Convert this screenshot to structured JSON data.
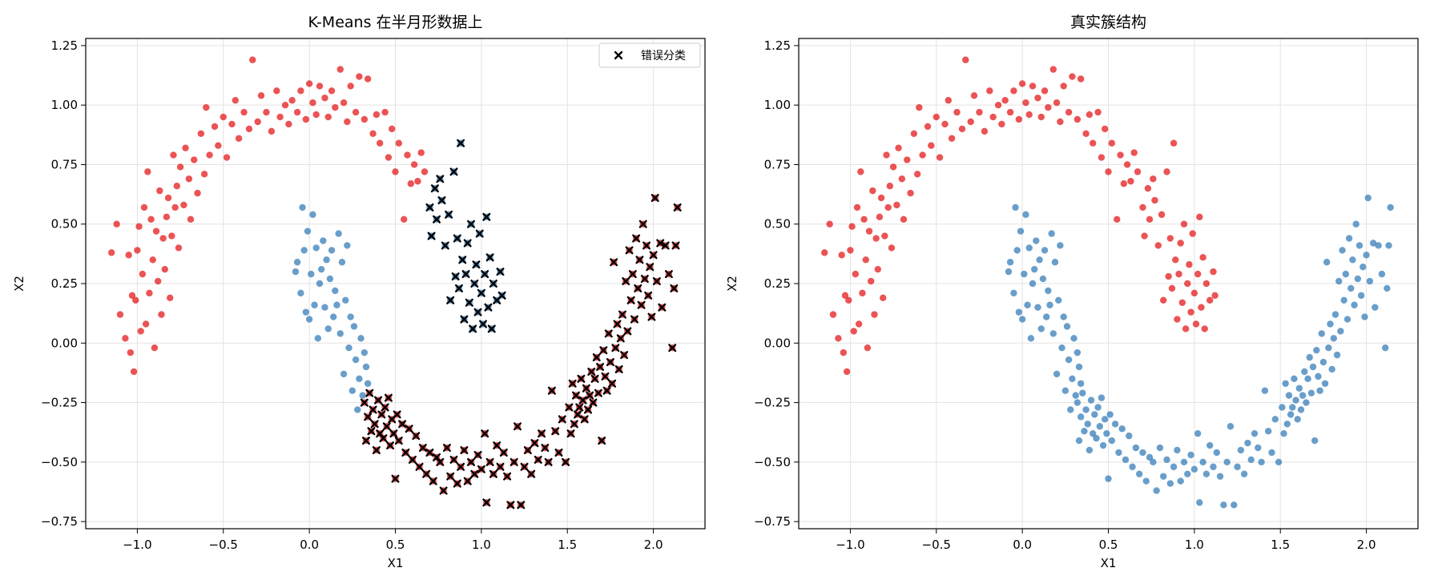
{
  "figure": {
    "background": "#ffffff"
  },
  "colors": {
    "cluster_0": "#e41a1c",
    "cluster_1": "#377eb8",
    "misclassified_marker": "#000000",
    "grid": "#e3e3e3"
  },
  "chart_data": [
    {
      "type": "scatter",
      "title": "K-Means 在半月形数据上",
      "xlabel": "X1",
      "ylabel": "X2",
      "xlim": [
        -1.3,
        2.3
      ],
      "ylim": [
        -0.78,
        1.28
      ],
      "xticks": [
        -1.0,
        -0.5,
        0.0,
        0.5,
        1.0,
        1.5,
        2.0
      ],
      "xtick_labels": [
        "−1.0",
        "−0.5",
        "0.0",
        "0.5",
        "1.0",
        "1.5",
        "2.0"
      ],
      "yticks": [
        -0.75,
        -0.5,
        -0.25,
        0.0,
        0.25,
        0.5,
        0.75,
        1.0,
        1.25
      ],
      "ytick_labels": [
        "−0.75",
        "−0.50",
        "−0.25",
        "0.00",
        "0.25",
        "0.50",
        "0.75",
        "1.00",
        "1.25"
      ],
      "grid": true,
      "legend": {
        "placement": "top-right",
        "entries": [
          {
            "label": "错误分类",
            "marker": "x",
            "color": "#000000"
          }
        ]
      },
      "point_color_by": "kmeans_label",
      "misclassified_overlay": true,
      "points_source": "shared_points"
    },
    {
      "type": "scatter",
      "title": "真实簇结构",
      "xlabel": "X1",
      "ylabel": "X2",
      "xlim": [
        -1.3,
        2.3
      ],
      "ylim": [
        -0.78,
        1.28
      ],
      "xticks": [
        -1.0,
        -0.5,
        0.0,
        0.5,
        1.0,
        1.5,
        2.0
      ],
      "xtick_labels": [
        "−1.0",
        "−0.5",
        "0.0",
        "0.5",
        "1.0",
        "1.5",
        "2.0"
      ],
      "yticks": [
        -0.75,
        -0.5,
        -0.25,
        0.0,
        0.25,
        0.5,
        0.75,
        1.0,
        1.25
      ],
      "ytick_labels": [
        "−0.75",
        "−0.50",
        "−0.25",
        "0.00",
        "0.25",
        "0.50",
        "0.75",
        "1.00",
        "1.25"
      ],
      "grid": true,
      "point_color_by": "true_label",
      "misclassified_overlay": false,
      "points_source": "shared_points"
    }
  ],
  "shared_points": [
    [
      -1.15,
      0.38,
      0,
      0
    ],
    [
      -1.12,
      0.5,
      0,
      0
    ],
    [
      -1.1,
      0.12,
      0,
      0
    ],
    [
      -1.07,
      0.02,
      0,
      0
    ],
    [
      -1.05,
      0.37,
      0,
      0
    ],
    [
      -1.04,
      -0.04,
      0,
      0
    ],
    [
      -1.03,
      0.2,
      0,
      0
    ],
    [
      -1.02,
      -0.12,
      0,
      0
    ],
    [
      -1.01,
      0.18,
      0,
      0
    ],
    [
      -1.0,
      0.39,
      0,
      0
    ],
    [
      -0.99,
      0.49,
      0,
      0
    ],
    [
      -0.98,
      0.05,
      0,
      0
    ],
    [
      -0.97,
      0.29,
      0,
      0
    ],
    [
      -0.96,
      0.57,
      0,
      0
    ],
    [
      -0.95,
      0.08,
      0,
      0
    ],
    [
      -0.94,
      0.72,
      0,
      0
    ],
    [
      -0.93,
      0.21,
      0,
      0
    ],
    [
      -0.92,
      0.52,
      0,
      0
    ],
    [
      -0.91,
      0.35,
      0,
      0
    ],
    [
      -0.9,
      -0.02,
      0,
      0
    ],
    [
      -0.89,
      0.47,
      0,
      0
    ],
    [
      -0.88,
      0.26,
      0,
      0
    ],
    [
      -0.87,
      0.64,
      0,
      0
    ],
    [
      -0.86,
      0.12,
      0,
      0
    ],
    [
      -0.85,
      0.44,
      0,
      0
    ],
    [
      -0.84,
      0.31,
      0,
      0
    ],
    [
      -0.83,
      0.53,
      0,
      0
    ],
    [
      -0.82,
      0.61,
      0,
      0
    ],
    [
      -0.81,
      0.19,
      0,
      0
    ],
    [
      -0.8,
      0.45,
      0,
      0
    ],
    [
      -0.79,
      0.79,
      0,
      0
    ],
    [
      -0.78,
      0.57,
      0,
      0
    ],
    [
      -0.77,
      0.66,
      0,
      0
    ],
    [
      -0.76,
      0.4,
      0,
      0
    ],
    [
      -0.75,
      0.74,
      0,
      0
    ],
    [
      -0.73,
      0.58,
      0,
      0
    ],
    [
      -0.72,
      0.82,
      0,
      0
    ],
    [
      -0.7,
      0.69,
      0,
      0
    ],
    [
      -0.69,
      0.52,
      0,
      0
    ],
    [
      -0.67,
      0.77,
      0,
      0
    ],
    [
      -0.65,
      0.63,
      0,
      0
    ],
    [
      -0.63,
      0.88,
      0,
      0
    ],
    [
      -0.61,
      0.71,
      0,
      0
    ],
    [
      -0.6,
      0.99,
      0,
      0
    ],
    [
      -0.58,
      0.79,
      0,
      0
    ],
    [
      -0.55,
      0.91,
      0,
      0
    ],
    [
      -0.53,
      0.83,
      0,
      0
    ],
    [
      -0.5,
      0.95,
      0,
      0
    ],
    [
      -0.48,
      0.78,
      0,
      0
    ],
    [
      -0.45,
      0.92,
      0,
      0
    ],
    [
      -0.43,
      1.02,
      0,
      0
    ],
    [
      -0.41,
      0.86,
      0,
      0
    ],
    [
      -0.38,
      0.97,
      0,
      0
    ],
    [
      -0.35,
      0.9,
      0,
      0
    ],
    [
      -0.33,
      1.19,
      0,
      0
    ],
    [
      -0.3,
      0.93,
      0,
      0
    ],
    [
      -0.28,
      1.04,
      0,
      0
    ],
    [
      -0.25,
      0.97,
      0,
      0
    ],
    [
      -0.22,
      0.89,
      0,
      0
    ],
    [
      -0.19,
      1.06,
      0,
      0
    ],
    [
      -0.17,
      0.95,
      0,
      0
    ],
    [
      -0.14,
      1.0,
      0,
      0
    ],
    [
      -0.12,
      0.92,
      0,
      0
    ],
    [
      -0.1,
      1.02,
      0,
      0
    ],
    [
      -0.07,
      0.97,
      0,
      0
    ],
    [
      -0.05,
      1.06,
      0,
      0
    ],
    [
      -0.02,
      0.94,
      0,
      0
    ],
    [
      0.0,
      1.09,
      0,
      0
    ],
    [
      0.02,
      1.01,
      0,
      0
    ],
    [
      0.04,
      0.96,
      0,
      0
    ],
    [
      0.06,
      1.08,
      0,
      0
    ],
    [
      0.09,
      1.03,
      0,
      0
    ],
    [
      0.11,
      0.95,
      0,
      0
    ],
    [
      0.13,
      1.06,
      0,
      0
    ],
    [
      0.15,
      0.99,
      0,
      0
    ],
    [
      0.18,
      1.15,
      0,
      0
    ],
    [
      0.2,
      1.01,
      0,
      0
    ],
    [
      0.22,
      0.93,
      0,
      0
    ],
    [
      0.24,
      1.08,
      0,
      0
    ],
    [
      0.27,
      0.97,
      0,
      0
    ],
    [
      0.29,
      1.12,
      0,
      0
    ],
    [
      0.32,
      0.94,
      0,
      0
    ],
    [
      0.34,
      1.11,
      0,
      0
    ],
    [
      0.37,
      0.88,
      0,
      0
    ],
    [
      0.39,
      0.96,
      0,
      0
    ],
    [
      0.41,
      0.84,
      0,
      0
    ],
    [
      0.44,
      0.97,
      0,
      0
    ],
    [
      0.46,
      0.78,
      0,
      0
    ],
    [
      0.48,
      0.9,
      0,
      0
    ],
    [
      0.5,
      0.72,
      0,
      0
    ],
    [
      0.52,
      0.84,
      0,
      0
    ],
    [
      0.55,
      0.52,
      0,
      0
    ],
    [
      0.57,
      0.79,
      0,
      0
    ],
    [
      0.59,
      0.67,
      0,
      0
    ],
    [
      0.61,
      0.75,
      0,
      0
    ],
    [
      0.63,
      0.68,
      0,
      0
    ],
    [
      0.65,
      0.8,
      0,
      0
    ],
    [
      0.67,
      0.72,
      0,
      0
    ],
    [
      0.7,
      0.57,
      1,
      0
    ],
    [
      0.71,
      0.45,
      1,
      0
    ],
    [
      0.73,
      0.65,
      1,
      0
    ],
    [
      0.74,
      0.52,
      1,
      0
    ],
    [
      0.76,
      0.69,
      1,
      0
    ],
    [
      0.77,
      0.6,
      1,
      0
    ],
    [
      0.79,
      0.41,
      1,
      0
    ],
    [
      0.81,
      0.54,
      1,
      0
    ],
    [
      0.82,
      0.18,
      1,
      0
    ],
    [
      0.84,
      0.72,
      1,
      0
    ],
    [
      0.85,
      0.28,
      1,
      0
    ],
    [
      0.86,
      0.44,
      1,
      0
    ],
    [
      0.87,
      0.23,
      1,
      0
    ],
    [
      0.88,
      0.84,
      1,
      0
    ],
    [
      0.89,
      0.35,
      1,
      0
    ],
    [
      0.9,
      0.1,
      1,
      0
    ],
    [
      0.91,
      0.29,
      1,
      0
    ],
    [
      0.92,
      0.42,
      1,
      0
    ],
    [
      0.93,
      0.17,
      1,
      0
    ],
    [
      0.94,
      0.5,
      1,
      0
    ],
    [
      0.95,
      0.06,
      1,
      0
    ],
    [
      0.96,
      0.25,
      1,
      0
    ],
    [
      0.97,
      0.33,
      1,
      0
    ],
    [
      0.98,
      0.13,
      1,
      0
    ],
    [
      0.99,
      0.46,
      1,
      0
    ],
    [
      1.0,
      0.21,
      1,
      0
    ],
    [
      1.01,
      0.08,
      1,
      0
    ],
    [
      1.02,
      0.29,
      1,
      0
    ],
    [
      1.03,
      0.53,
      1,
      0
    ],
    [
      1.04,
      0.15,
      1,
      0
    ],
    [
      1.05,
      0.36,
      1,
      0
    ],
    [
      1.06,
      0.06,
      1,
      0
    ],
    [
      1.07,
      0.25,
      1,
      0
    ],
    [
      1.09,
      0.18,
      1,
      0
    ],
    [
      1.11,
      0.3,
      1,
      0
    ],
    [
      1.12,
      0.2,
      1,
      0
    ],
    [
      -0.08,
      0.3,
      1,
      1
    ],
    [
      -0.07,
      0.34,
      1,
      1
    ],
    [
      -0.05,
      0.21,
      1,
      1
    ],
    [
      -0.04,
      0.57,
      1,
      1
    ],
    [
      -0.03,
      0.39,
      1,
      1
    ],
    [
      -0.02,
      0.13,
      1,
      1
    ],
    [
      -0.01,
      0.47,
      1,
      1
    ],
    [
      0.0,
      0.1,
      1,
      1
    ],
    [
      0.01,
      0.29,
      1,
      1
    ],
    [
      0.02,
      0.54,
      1,
      1
    ],
    [
      0.03,
      0.16,
      1,
      1
    ],
    [
      0.04,
      0.4,
      1,
      1
    ],
    [
      0.05,
      0.02,
      1,
      1
    ],
    [
      0.06,
      0.25,
      1,
      1
    ],
    [
      0.07,
      0.31,
      1,
      1
    ],
    [
      0.08,
      0.43,
      1,
      1
    ],
    [
      0.09,
      0.15,
      1,
      1
    ],
    [
      0.1,
      0.35,
      1,
      1
    ],
    [
      0.11,
      0.06,
      1,
      1
    ],
    [
      0.12,
      0.27,
      1,
      1
    ],
    [
      0.13,
      0.39,
      1,
      1
    ],
    [
      0.14,
      0.11,
      1,
      1
    ],
    [
      0.15,
      0.22,
      1,
      1
    ],
    [
      0.16,
      0.16,
      1,
      1
    ],
    [
      0.17,
      0.46,
      1,
      1
    ],
    [
      0.18,
      0.04,
      1,
      1
    ],
    [
      0.19,
      0.34,
      1,
      1
    ],
    [
      0.2,
      -0.13,
      1,
      1
    ],
    [
      0.21,
      0.18,
      1,
      1
    ],
    [
      0.22,
      0.41,
      1,
      1
    ],
    [
      0.23,
      -0.02,
      1,
      1
    ],
    [
      0.24,
      0.11,
      1,
      1
    ],
    [
      0.25,
      -0.2,
      1,
      1
    ],
    [
      0.26,
      0.07,
      1,
      1
    ],
    [
      0.27,
      -0.07,
      1,
      1
    ],
    [
      0.28,
      -0.28,
      1,
      1
    ],
    [
      0.29,
      -0.15,
      1,
      1
    ],
    [
      0.3,
      0.02,
      1,
      1
    ],
    [
      0.31,
      -0.22,
      1,
      1
    ],
    [
      0.32,
      -0.04,
      1,
      1
    ],
    [
      0.33,
      -0.1,
      1,
      1
    ],
    [
      0.34,
      -0.17,
      1,
      1
    ],
    [
      0.32,
      -0.25,
      0,
      1
    ],
    [
      0.33,
      -0.41,
      0,
      1
    ],
    [
      0.34,
      -0.31,
      0,
      1
    ],
    [
      0.35,
      -0.21,
      0,
      1
    ],
    [
      0.36,
      -0.37,
      0,
      1
    ],
    [
      0.37,
      -0.28,
      0,
      1
    ],
    [
      0.38,
      -0.34,
      0,
      1
    ],
    [
      0.39,
      -0.45,
      0,
      1
    ],
    [
      0.4,
      -0.24,
      0,
      1
    ],
    [
      0.41,
      -0.38,
      0,
      1
    ],
    [
      0.42,
      -0.3,
      0,
      1
    ],
    [
      0.43,
      -0.4,
      0,
      1
    ],
    [
      0.44,
      -0.27,
      0,
      1
    ],
    [
      0.45,
      -0.35,
      0,
      1
    ],
    [
      0.46,
      -0.23,
      0,
      1
    ],
    [
      0.47,
      -0.43,
      0,
      1
    ],
    [
      0.48,
      -0.32,
      0,
      1
    ],
    [
      0.49,
      -0.38,
      0,
      1
    ],
    [
      0.5,
      -0.57,
      0,
      1
    ],
    [
      0.51,
      -0.3,
      0,
      1
    ],
    [
      0.52,
      -0.41,
      0,
      1
    ],
    [
      0.54,
      -0.34,
      0,
      1
    ],
    [
      0.56,
      -0.46,
      0,
      1
    ],
    [
      0.58,
      -0.36,
      0,
      1
    ],
    [
      0.6,
      -0.49,
      0,
      1
    ],
    [
      0.62,
      -0.39,
      0,
      1
    ],
    [
      0.64,
      -0.52,
      0,
      1
    ],
    [
      0.66,
      -0.44,
      0,
      1
    ],
    [
      0.68,
      -0.55,
      0,
      1
    ],
    [
      0.7,
      -0.46,
      0,
      1
    ],
    [
      0.72,
      -0.58,
      0,
      1
    ],
    [
      0.74,
      -0.48,
      0,
      1
    ],
    [
      0.76,
      -0.5,
      0,
      1
    ],
    [
      0.78,
      -0.62,
      0,
      1
    ],
    [
      0.8,
      -0.44,
      0,
      1
    ],
    [
      0.82,
      -0.56,
      0,
      1
    ],
    [
      0.84,
      -0.49,
      0,
      1
    ],
    [
      0.86,
      -0.59,
      0,
      1
    ],
    [
      0.88,
      -0.52,
      0,
      1
    ],
    [
      0.9,
      -0.45,
      0,
      1
    ],
    [
      0.92,
      -0.58,
      0,
      1
    ],
    [
      0.94,
      -0.5,
      0,
      1
    ],
    [
      0.96,
      -0.55,
      0,
      1
    ],
    [
      0.98,
      -0.47,
      0,
      1
    ],
    [
      1.0,
      -0.53,
      0,
      1
    ],
    [
      1.02,
      -0.38,
      0,
      1
    ],
    [
      1.03,
      -0.67,
      0,
      1
    ],
    [
      1.05,
      -0.5,
      0,
      1
    ],
    [
      1.07,
      -0.55,
      0,
      1
    ],
    [
      1.09,
      -0.43,
      0,
      1
    ],
    [
      1.11,
      -0.52,
      0,
      1
    ],
    [
      1.13,
      -0.46,
      0,
      1
    ],
    [
      1.15,
      -0.56,
      0,
      1
    ],
    [
      1.17,
      -0.68,
      0,
      1
    ],
    [
      1.19,
      -0.5,
      0,
      1
    ],
    [
      1.21,
      -0.35,
      0,
      1
    ],
    [
      1.23,
      -0.68,
      0,
      1
    ],
    [
      1.25,
      -0.52,
      0,
      1
    ],
    [
      1.27,
      -0.45,
      0,
      1
    ],
    [
      1.29,
      -0.55,
      0,
      1
    ],
    [
      1.31,
      -0.42,
      0,
      1
    ],
    [
      1.33,
      -0.49,
      0,
      1
    ],
    [
      1.35,
      -0.38,
      0,
      1
    ],
    [
      1.37,
      -0.44,
      0,
      1
    ],
    [
      1.39,
      -0.5,
      0,
      1
    ],
    [
      1.41,
      -0.2,
      0,
      1
    ],
    [
      1.43,
      -0.37,
      0,
      1
    ],
    [
      1.45,
      -0.46,
      0,
      1
    ],
    [
      1.47,
      -0.32,
      0,
      1
    ],
    [
      1.49,
      -0.5,
      0,
      1
    ],
    [
      1.51,
      -0.27,
      0,
      1
    ],
    [
      1.52,
      -0.38,
      0,
      1
    ],
    [
      1.53,
      -0.17,
      0,
      1
    ],
    [
      1.54,
      -0.34,
      0,
      1
    ],
    [
      1.55,
      -0.22,
      0,
      1
    ],
    [
      1.56,
      -0.3,
      0,
      1
    ],
    [
      1.57,
      -0.27,
      0,
      1
    ],
    [
      1.58,
      -0.15,
      0,
      1
    ],
    [
      1.59,
      -0.24,
      0,
      1
    ],
    [
      1.6,
      -0.32,
      0,
      1
    ],
    [
      1.61,
      -0.19,
      0,
      1
    ],
    [
      1.62,
      -0.28,
      0,
      1
    ],
    [
      1.63,
      -0.22,
      0,
      1
    ],
    [
      1.64,
      -0.12,
      0,
      1
    ],
    [
      1.65,
      -0.25,
      0,
      1
    ],
    [
      1.66,
      -0.15,
      0,
      1
    ],
    [
      1.67,
      -0.06,
      0,
      1
    ],
    [
      1.68,
      -0.21,
      0,
      1
    ],
    [
      1.69,
      -0.1,
      0,
      1
    ],
    [
      1.7,
      -0.41,
      0,
      1
    ],
    [
      1.71,
      -0.03,
      0,
      1
    ],
    [
      1.72,
      -0.14,
      0,
      1
    ],
    [
      1.73,
      -0.2,
      0,
      1
    ],
    [
      1.74,
      0.04,
      0,
      1
    ],
    [
      1.75,
      -0.08,
      0,
      1
    ],
    [
      1.76,
      -0.17,
      0,
      1
    ],
    [
      1.77,
      0.34,
      0,
      1
    ],
    [
      1.78,
      -0.02,
      0,
      1
    ],
    [
      1.79,
      0.08,
      0,
      1
    ],
    [
      1.8,
      -0.11,
      0,
      1
    ],
    [
      1.81,
      0.02,
      0,
      1
    ],
    [
      1.82,
      0.12,
      0,
      1
    ],
    [
      1.83,
      -0.05,
      0,
      1
    ],
    [
      1.84,
      0.26,
      0,
      1
    ],
    [
      1.85,
      0.05,
      0,
      1
    ],
    [
      1.86,
      0.39,
      0,
      1
    ],
    [
      1.87,
      0.18,
      0,
      1
    ],
    [
      1.88,
      0.29,
      0,
      1
    ],
    [
      1.89,
      0.1,
      0,
      1
    ],
    [
      1.9,
      0.44,
      0,
      1
    ],
    [
      1.91,
      0.23,
      0,
      1
    ],
    [
      1.92,
      0.35,
      0,
      1
    ],
    [
      1.93,
      0.16,
      0,
      1
    ],
    [
      1.94,
      0.5,
      0,
      1
    ],
    [
      1.95,
      0.27,
      0,
      1
    ],
    [
      1.96,
      0.41,
      0,
      1
    ],
    [
      1.97,
      0.2,
      0,
      1
    ],
    [
      1.98,
      0.32,
      0,
      1
    ],
    [
      1.99,
      0.11,
      0,
      1
    ],
    [
      2.0,
      0.37,
      0,
      1
    ],
    [
      2.01,
      0.61,
      0,
      1
    ],
    [
      2.02,
      0.26,
      0,
      1
    ],
    [
      2.04,
      0.42,
      0,
      1
    ],
    [
      2.05,
      0.15,
      0,
      1
    ],
    [
      2.07,
      0.41,
      0,
      1
    ],
    [
      2.09,
      0.29,
      0,
      1
    ],
    [
      2.11,
      -0.02,
      0,
      1
    ],
    [
      2.12,
      0.23,
      0,
      1
    ],
    [
      2.13,
      0.41,
      0,
      1
    ],
    [
      2.14,
      0.57,
      0,
      1
    ]
  ]
}
